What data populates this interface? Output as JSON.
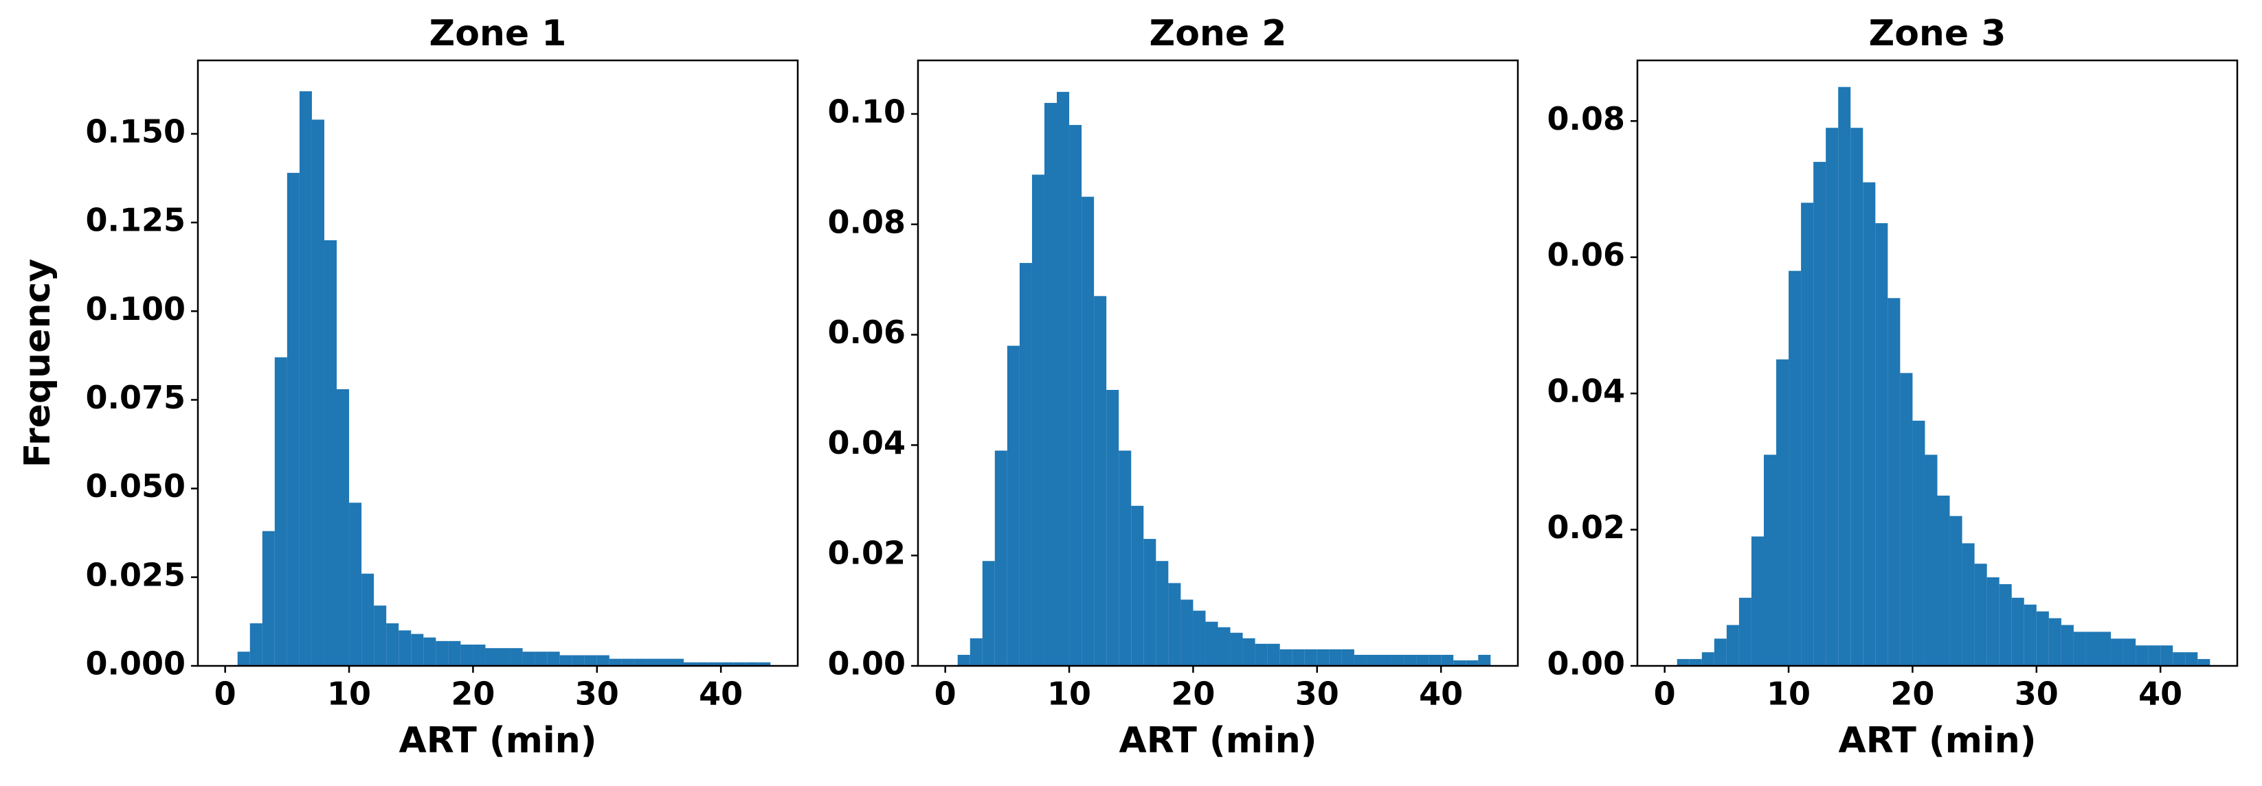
{
  "chart_data": [
    {
      "type": "histogram",
      "title": "Zone 1",
      "xlabel": "ART (min)",
      "ylabel": "Frequency",
      "color": "#1f77b4",
      "bins": [
        0,
        1,
        2,
        3,
        4,
        5,
        6,
        7,
        8,
        9,
        10,
        11,
        12,
        13,
        14,
        15,
        16,
        17,
        18,
        19,
        20,
        21,
        22,
        23,
        24,
        25,
        26,
        27,
        28,
        29,
        30,
        31,
        32,
        33,
        34,
        35,
        36,
        37,
        38,
        39,
        40,
        41,
        42,
        43,
        44
      ],
      "values": [
        0,
        0.004,
        0.012,
        0.038,
        0.087,
        0.139,
        0.162,
        0.154,
        0.12,
        0.078,
        0.046,
        0.026,
        0.017,
        0.012,
        0.01,
        0.009,
        0.008,
        0.007,
        0.007,
        0.006,
        0.006,
        0.005,
        0.005,
        0.005,
        0.004,
        0.004,
        0.004,
        0.003,
        0.003,
        0.003,
        0.003,
        0.002,
        0.002,
        0.002,
        0.002,
        0.002,
        0.002,
        0.001,
        0.001,
        0.001,
        0.001,
        0.001,
        0.001,
        0.001
      ],
      "xlim": [
        -2.2,
        46.2
      ],
      "xticks": [
        0,
        10,
        20,
        30,
        40
      ],
      "ylim": [
        0,
        0.1707
      ],
      "yticks": [
        {
          "value": 0,
          "label": "0.000"
        },
        {
          "value": 0.025,
          "label": "0.025"
        },
        {
          "value": 0.05,
          "label": "0.050"
        },
        {
          "value": 0.075,
          "label": "0.075"
        },
        {
          "value": 0.1,
          "label": "0.100"
        },
        {
          "value": 0.125,
          "label": "0.125"
        },
        {
          "value": 0.15,
          "label": "0.150"
        }
      ]
    },
    {
      "type": "histogram",
      "title": "Zone 2",
      "xlabel": "ART (min)",
      "color": "#1f77b4",
      "bins": [
        0,
        1,
        2,
        3,
        4,
        5,
        6,
        7,
        8,
        9,
        10,
        11,
        12,
        13,
        14,
        15,
        16,
        17,
        18,
        19,
        20,
        21,
        22,
        23,
        24,
        25,
        26,
        27,
        28,
        29,
        30,
        31,
        32,
        33,
        34,
        35,
        36,
        37,
        38,
        39,
        40,
        41,
        42,
        43,
        44
      ],
      "values": [
        0,
        0.002,
        0.005,
        0.019,
        0.039,
        0.058,
        0.073,
        0.089,
        0.102,
        0.104,
        0.098,
        0.085,
        0.067,
        0.05,
        0.039,
        0.029,
        0.023,
        0.019,
        0.015,
        0.012,
        0.01,
        0.008,
        0.007,
        0.006,
        0.005,
        0.004,
        0.004,
        0.003,
        0.003,
        0.003,
        0.003,
        0.003,
        0.003,
        0.002,
        0.002,
        0.002,
        0.002,
        0.002,
        0.002,
        0.002,
        0.002,
        0.001,
        0.001,
        0.002
      ],
      "xlim": [
        -2.2,
        46.2
      ],
      "xticks": [
        0,
        10,
        20,
        30,
        40
      ],
      "ylim": [
        0,
        0.1097
      ],
      "yticks": [
        {
          "value": 0,
          "label": "0.00"
        },
        {
          "value": 0.02,
          "label": "0.02"
        },
        {
          "value": 0.04,
          "label": "0.04"
        },
        {
          "value": 0.06,
          "label": "0.06"
        },
        {
          "value": 0.08,
          "label": "0.08"
        },
        {
          "value": 0.1,
          "label": "0.10"
        }
      ]
    },
    {
      "type": "histogram",
      "title": "Zone 3",
      "xlabel": "ART (min)",
      "color": "#1f77b4",
      "bins": [
        0,
        1,
        2,
        3,
        4,
        5,
        6,
        7,
        8,
        9,
        10,
        11,
        12,
        13,
        14,
        15,
        16,
        17,
        18,
        19,
        20,
        21,
        22,
        23,
        24,
        25,
        26,
        27,
        28,
        29,
        30,
        31,
        32,
        33,
        34,
        35,
        36,
        37,
        38,
        39,
        40,
        41,
        42,
        43,
        44
      ],
      "values": [
        0,
        0.001,
        0.001,
        0.002,
        0.004,
        0.006,
        0.01,
        0.019,
        0.031,
        0.045,
        0.058,
        0.068,
        0.074,
        0.079,
        0.085,
        0.079,
        0.071,
        0.065,
        0.054,
        0.043,
        0.036,
        0.031,
        0.025,
        0.022,
        0.018,
        0.015,
        0.013,
        0.012,
        0.01,
        0.009,
        0.008,
        0.007,
        0.006,
        0.005,
        0.005,
        0.005,
        0.004,
        0.004,
        0.003,
        0.003,
        0.003,
        0.002,
        0.002,
        0.001
      ],
      "xlim": [
        -2.2,
        46.2
      ],
      "xticks": [
        0,
        10,
        20,
        30,
        40
      ],
      "ylim": [
        0,
        0.0889
      ],
      "yticks": [
        {
          "value": 0,
          "label": "0.00"
        },
        {
          "value": 0.02,
          "label": "0.02"
        },
        {
          "value": 0.04,
          "label": "0.04"
        },
        {
          "value": 0.06,
          "label": "0.06"
        },
        {
          "value": 0.08,
          "label": "0.08"
        }
      ]
    }
  ]
}
